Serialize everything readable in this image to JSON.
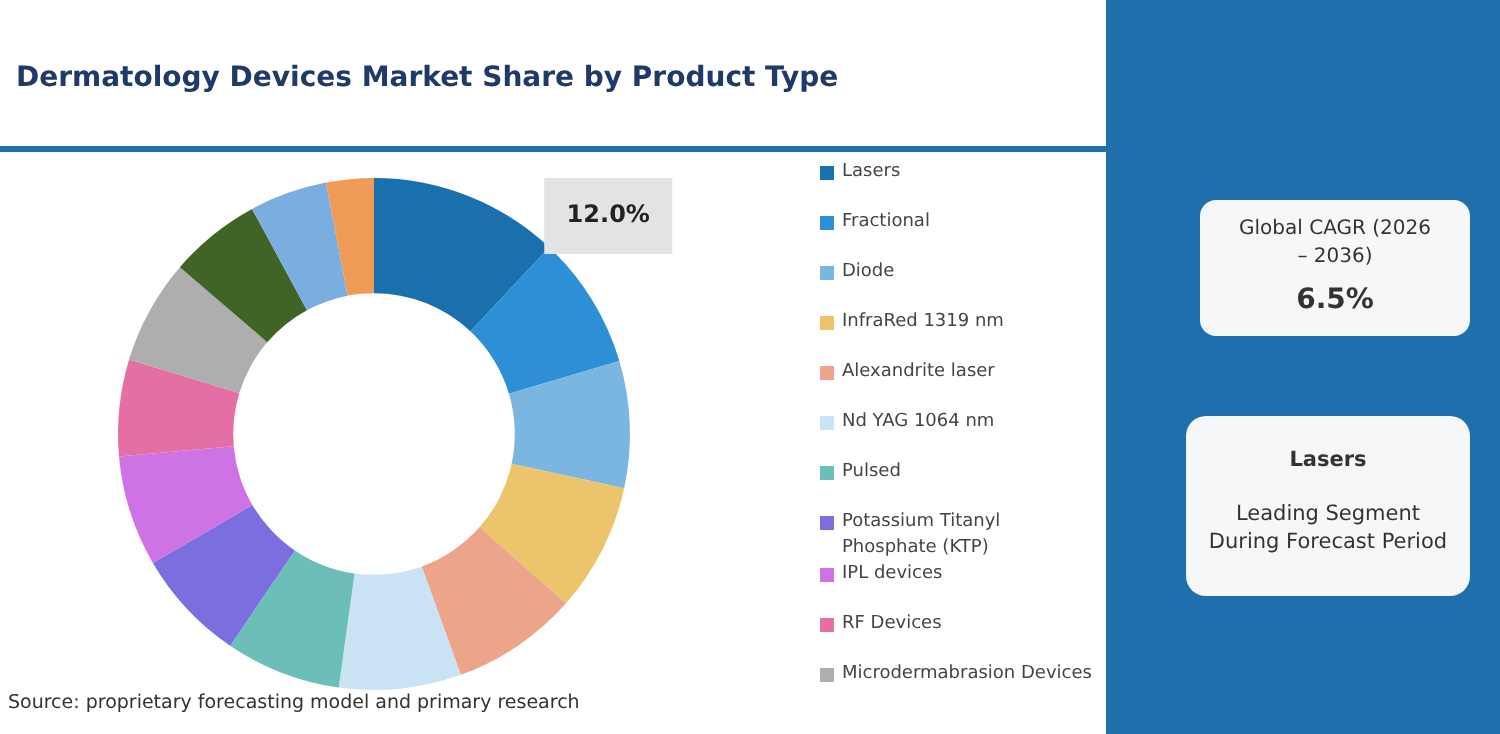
{
  "chart_data": {
    "type": "donut",
    "title": "Dermatology Devices Market Share by Product Type",
    "categories": [
      "Lasers",
      "Fractional",
      "Diode",
      "InfraRed 1319 nm",
      "Alexandrite laser",
      "Nd YAG 1064 nm",
      "Pulsed",
      "Potassium Titanyl Phosphate (KTP)",
      "IPL devices",
      "RF Devices",
      "Microdermabrasion Devices",
      null,
      null,
      null
    ],
    "values": [
      12.0,
      8.4,
      8.0,
      8.1,
      8.0,
      7.7,
      7.3,
      7.1,
      7.0,
      6.1,
      6.6,
      5.8,
      4.9,
      3.0
    ],
    "value_labels": [
      "12.0%",
      null,
      null,
      null,
      null,
      null,
      null,
      null,
      null,
      null,
      null,
      null,
      null,
      null
    ],
    "colors": [
      "#1a6fad",
      "#2d8fd5",
      "#7ab6e0",
      "#ebc46c",
      "#eca48a",
      "#c9e3f4",
      "#6bbfb8",
      "#7b6fe0",
      "#cd73e3",
      "#e46fa4",
      "#aeaeae",
      "#3f6426",
      "#7aaee0",
      "#ef9a55"
    ],
    "legend": "right",
    "annotations": [
      "Global CAGR (2026 – 2036)",
      "6.5%",
      "Lasers",
      "Leading Segment During Forecast Period",
      "Source: proprietary forecasting model and primary research"
    ]
  }
}
